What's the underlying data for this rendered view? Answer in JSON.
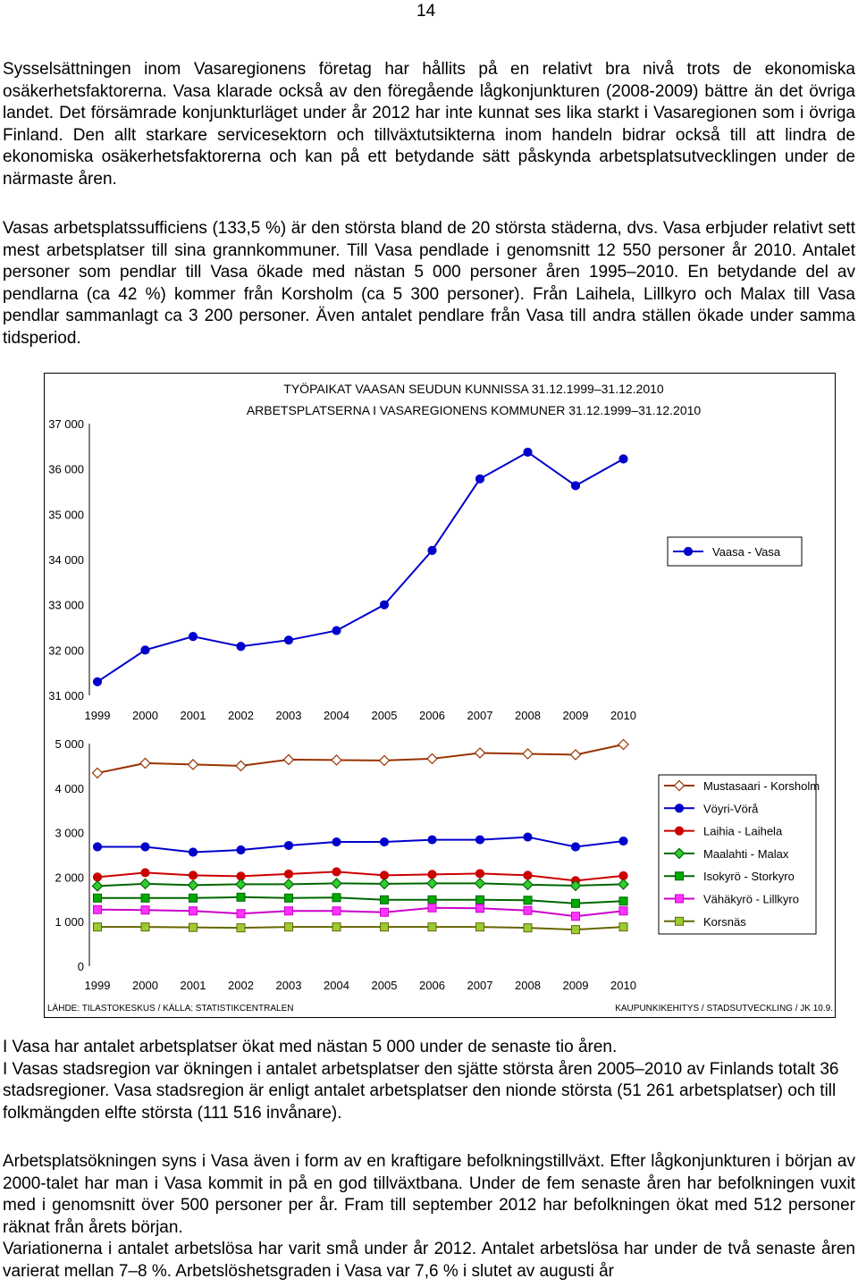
{
  "page_number": "14",
  "paragraphs": {
    "p1": "Sysselsättningen inom Vasaregionens företag har hållits på en relativt bra nivå trots de ekonomiska osäkerhetsfaktorerna. Vasa klarade också av den föregående lågkonjunkturen (2008-2009) bättre än det övriga landet. Det försämrade konjunkturläget under år 2012 har inte kunnat ses lika starkt i Vasaregionen som i övriga Finland.   Den allt starkare servicesektorn och tillväxtutsikterna inom handeln bidrar också till att lindra de ekonomiska osäkerhetsfaktorerna och kan på ett betydande sätt påskynda arbetsplatsutvecklingen under de närmaste åren.",
    "p2": "Vasas arbetsplatssufficiens (133,5 %) är den största bland de 20 största städerna, dvs. Vasa erbjuder relativt sett mest arbetsplatser till sina grannkommuner. Till Vasa pendlade i genomsnitt 12 550 personer år 2010. Antalet personer som pendlar till Vasa ökade med nästan 5 000 personer åren 1995–2010. En betydande del av pendlarna (ca 42 %) kommer från Korsholm (ca 5 300 personer). Från Laihela, Lillkyro och Malax till Vasa pendlar sammanlagt ca 3 200 personer. Även antalet pendlare från Vasa till andra ställen ökade under samma tidsperiod.",
    "p3": "I Vasa har antalet arbetsplatser ökat med nästan 5 000 under de senaste tio åren.\nI Vasas stadsregion var ökningen i antalet arbetsplatser den sjätte största åren 2005–2010 av Finlands totalt 36 stadsregioner. Vasa stadsregion är enligt antalet arbetsplatser den nionde största (51 261 arbetsplatser) och till folkmängden elfte största (111 516 invånare).",
    "p4": "Arbetsplatsökningen syns i Vasa även i form av en kraftigare befolkningstillväxt. Efter lågkonjunkturen i början av 2000-talet har man i Vasa kommit in på en god tillväxtbana. Under de fem senaste åren har befolkningen vuxit med i genomsnitt över 500 personer per år. Fram till september 2012 har befolkningen ökat med 512 personer räknat från årets början.\nVariationerna i antalet arbetslösa har varit små under år 2012.  Antalet arbetslösa har under de två senaste åren varierat mellan 7–8 %. Arbetslöshetsgraden i Vasa var 7,6 % i slutet av augusti år"
  },
  "figure": {
    "title_line1": "TYÖPAIKAT VAASAN SEUDUN KUNNISSA 31.12.1999–31.12.2010",
    "title_line2": "ARBETSPLATSERNA I VASAREGIONENS KOMMUNER 31.12.1999–31.12.2010",
    "footer_left": "LÄHDE: TILASTOKESKUS / KÄLLA: STATISTIKCENTRALEN",
    "footer_right": "KAUPUNKIKEHITYS / STADSUTVECKLING / JK 10.9."
  },
  "chart_data": [
    {
      "type": "line",
      "x": [
        "1999",
        "2000",
        "2001",
        "2002",
        "2003",
        "2004",
        "2005",
        "2006",
        "2007",
        "2008",
        "2009",
        "2010"
      ],
      "ylim": [
        31000,
        37000
      ],
      "yticks": [
        "31 000",
        "32 000",
        "33 000",
        "34 000",
        "35 000",
        "36 000",
        "37 000"
      ],
      "series": [
        {
          "name": "Vaasa - Vasa",
          "color": "#0000cc",
          "marker": "circle",
          "values": [
            31300,
            32000,
            32300,
            32080,
            32220,
            32430,
            33000,
            34200,
            35780,
            36370,
            35630,
            36220
          ]
        }
      ],
      "legend": "right"
    },
    {
      "type": "line",
      "x": [
        "1999",
        "2000",
        "2001",
        "2002",
        "2003",
        "2004",
        "2005",
        "2006",
        "2007",
        "2008",
        "2009",
        "2010"
      ],
      "ylim": [
        0,
        5000
      ],
      "yticks": [
        "0",
        "1 000",
        "2 000",
        "3 000",
        "4 000",
        "5 000"
      ],
      "series": [
        {
          "name": "Mustasaari - Korsholm",
          "color": "#993300",
          "fill": "#ffffff",
          "marker": "diamond",
          "values": [
            4340,
            4560,
            4530,
            4500,
            4640,
            4630,
            4620,
            4660,
            4790,
            4770,
            4750,
            4980
          ]
        },
        {
          "name": "Vöyri-Vörå",
          "color": "#0000cc",
          "fill": "#0000cc",
          "marker": "circle",
          "values": [
            2680,
            2680,
            2560,
            2610,
            2710,
            2790,
            2790,
            2840,
            2840,
            2900,
            2680,
            2810
          ]
        },
        {
          "name": "Laihia - Laihela",
          "color": "#cc0000",
          "fill": "#cc0000",
          "marker": "circle",
          "values": [
            2000,
            2100,
            2040,
            2020,
            2070,
            2120,
            2040,
            2060,
            2080,
            2040,
            1920,
            2030
          ]
        },
        {
          "name": "Maalahti - Malax",
          "color": "#006600",
          "fill": "#33cc33",
          "marker": "diamond",
          "values": [
            1800,
            1850,
            1820,
            1840,
            1840,
            1860,
            1850,
            1860,
            1860,
            1830,
            1810,
            1840
          ]
        },
        {
          "name": "Isokyrö - Storkyro",
          "color": "#006600",
          "fill": "#00aa00",
          "marker": "square",
          "values": [
            1530,
            1530,
            1530,
            1550,
            1530,
            1540,
            1490,
            1490,
            1490,
            1480,
            1410,
            1460
          ]
        },
        {
          "name": "Vähäkyrö - Lillkyro",
          "color": "#cc00cc",
          "fill": "#ff33ff",
          "marker": "square",
          "values": [
            1270,
            1260,
            1240,
            1180,
            1240,
            1240,
            1210,
            1310,
            1300,
            1250,
            1120,
            1240
          ]
        },
        {
          "name": "Korsnäs",
          "color": "#666600",
          "fill": "#99cc33",
          "marker": "square",
          "values": [
            880,
            880,
            870,
            860,
            880,
            880,
            880,
            880,
            880,
            860,
            820,
            880
          ]
        }
      ],
      "legend": "right"
    }
  ]
}
